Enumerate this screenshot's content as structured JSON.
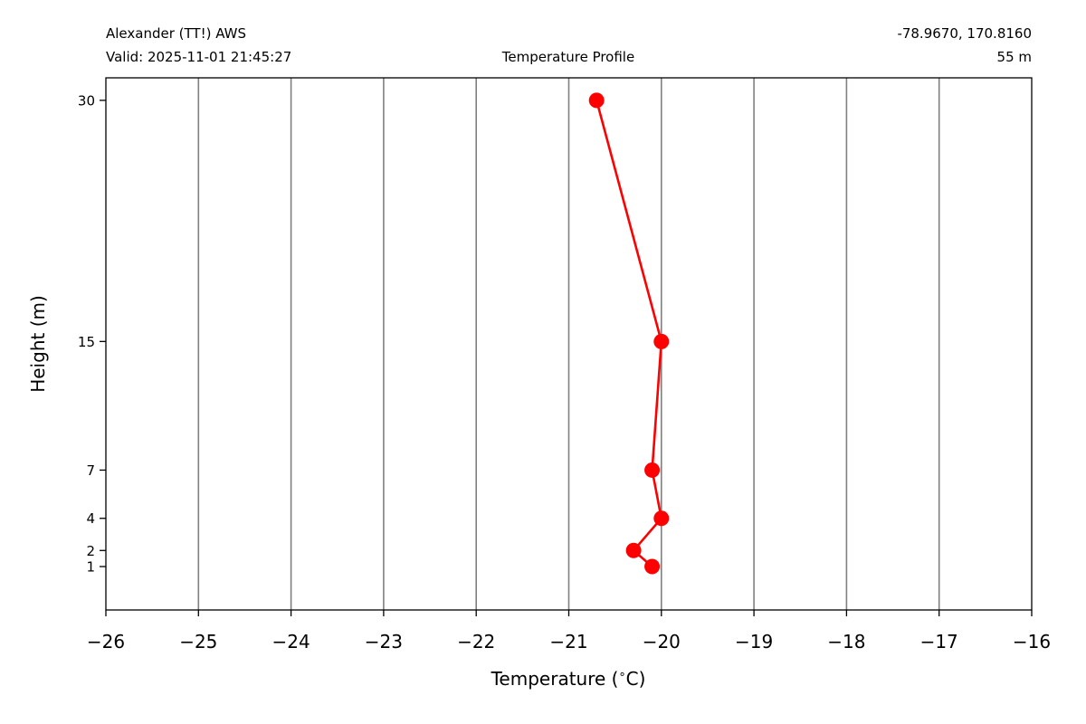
{
  "header": {
    "station": "Alexander (TT!) AWS",
    "valid": "Valid: 2025-11-01 21:45:27",
    "title": "Temperature Profile",
    "coords": "-78.9670, 170.8160",
    "elevation": "55 m"
  },
  "chart_data": {
    "type": "line",
    "title": "Temperature Profile",
    "xlabel": "Temperature ($^\\circ$C)",
    "ylabel": "Height (m)",
    "xlim": [
      -26,
      -16
    ],
    "ylim": [
      -1.7,
      31.4
    ],
    "xticks": [
      -26,
      -25,
      -24,
      -23,
      -22,
      -21,
      -20,
      -19,
      -18,
      -17,
      -16
    ],
    "xtick_labels": [
      "−26",
      "−25",
      "−24",
      "−23",
      "−22",
      "−21",
      "−20",
      "−19",
      "−18",
      "−17",
      "−16"
    ],
    "yticks": [
      1,
      2,
      4,
      7,
      15,
      30
    ],
    "ytick_labels": [
      "1",
      "2",
      "4",
      "7",
      "15",
      "30"
    ],
    "grid": "x-major",
    "series": [
      {
        "color": "#ff0000",
        "x": [
          -20.1,
          -20.3,
          -20.0,
          -20.1,
          -20.0,
          -20.7
        ],
        "y": [
          1,
          2,
          4,
          7,
          15,
          30
        ]
      }
    ]
  },
  "colors": {
    "series": "#ff0000",
    "grid": "#808080",
    "axes": "#000000",
    "background": "#ffffff"
  }
}
